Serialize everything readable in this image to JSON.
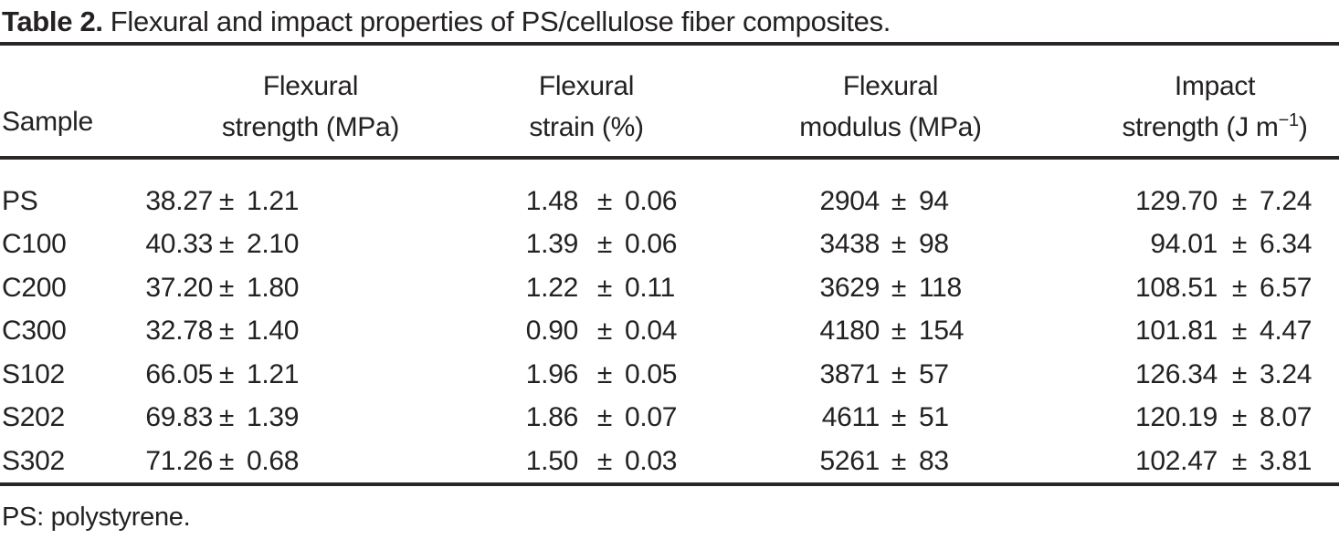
{
  "title": {
    "label": "Table 2.",
    "text": "Flexural and impact properties of PS/cellulose fiber composites."
  },
  "symbols": {
    "plus_minus": "±"
  },
  "table": {
    "headers": {
      "sample": "Sample",
      "flexural_strength": {
        "line1": "Flexural",
        "line2": "strength (MPa)"
      },
      "flexural_strain": {
        "line1": "Flexural",
        "line2": "strain (%)"
      },
      "flexural_modulus": {
        "line1": "Flexural",
        "line2": "modulus (MPa)"
      },
      "impact_strength": {
        "line1": "Impact",
        "line2_prefix": "strength (J m",
        "line2_sup": "−1",
        "line2_suffix": ")"
      }
    },
    "rows": [
      {
        "sample": "PS",
        "strength": {
          "v": "38.27",
          "e": "1.21"
        },
        "strain": {
          "v": "1.48",
          "e": "0.06"
        },
        "modulus": {
          "v": "2904",
          "e": "94"
        },
        "impact": {
          "v": "129.70",
          "e": "7.24"
        }
      },
      {
        "sample": "C100",
        "strength": {
          "v": "40.33",
          "e": "2.10"
        },
        "strain": {
          "v": "1.39",
          "e": "0.06"
        },
        "modulus": {
          "v": "3438",
          "e": "98"
        },
        "impact": {
          "v": "94.01",
          "e": "6.34"
        }
      },
      {
        "sample": "C200",
        "strength": {
          "v": "37.20",
          "e": "1.80"
        },
        "strain": {
          "v": "1.22",
          "e": "0.11"
        },
        "modulus": {
          "v": "3629",
          "e": "118"
        },
        "impact": {
          "v": "108.51",
          "e": "6.57"
        }
      },
      {
        "sample": "C300",
        "strength": {
          "v": "32.78",
          "e": "1.40"
        },
        "strain": {
          "v": "0.90",
          "e": "0.04"
        },
        "modulus": {
          "v": "4180",
          "e": "154"
        },
        "impact": {
          "v": "101.81",
          "e": "4.47"
        }
      },
      {
        "sample": "S102",
        "strength": {
          "v": "66.05",
          "e": "1.21"
        },
        "strain": {
          "v": "1.96",
          "e": "0.05"
        },
        "modulus": {
          "v": "3871",
          "e": "57"
        },
        "impact": {
          "v": "126.34",
          "e": "3.24"
        }
      },
      {
        "sample": "S202",
        "strength": {
          "v": "69.83",
          "e": "1.39"
        },
        "strain": {
          "v": "1.86",
          "e": "0.07"
        },
        "modulus": {
          "v": "4611",
          "e": "51"
        },
        "impact": {
          "v": "120.19",
          "e": "8.07"
        }
      },
      {
        "sample": "S302",
        "strength": {
          "v": "71.26",
          "e": "0.68"
        },
        "strain": {
          "v": "1.50",
          "e": "0.03"
        },
        "modulus": {
          "v": "5261",
          "e": "83"
        },
        "impact": {
          "v": "102.47",
          "e": "3.81"
        }
      }
    ]
  },
  "footnote": "PS: polystyrene."
}
